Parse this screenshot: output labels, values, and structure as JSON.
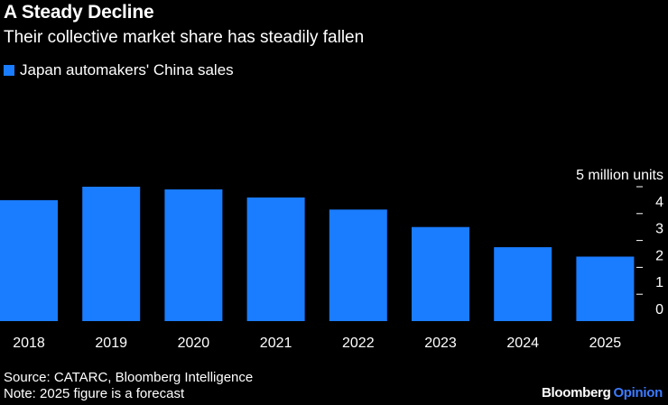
{
  "header": {
    "title": "A Steady Decline",
    "subtitle": "Their collective market share has steadily fallen"
  },
  "legend": {
    "label": "Japan automakers' China sales"
  },
  "footer": {
    "source": "Source: CATARC, Bloomberg Intelligence",
    "note": "Note: 2025 figure is a forecast",
    "brand_main": "Bloomberg",
    "brand_sub": "Opinion"
  },
  "colors": {
    "bar": "#1a7cff",
    "background": "#000000",
    "brand_accent": "#3d7bff"
  },
  "chart_data": {
    "type": "bar",
    "title": "A Steady Decline",
    "subtitle": "Their collective market share has steadily fallen",
    "categories": [
      "2018",
      "2019",
      "2020",
      "2021",
      "2022",
      "2023",
      "2024",
      "2025"
    ],
    "series": [
      {
        "name": "Japan automakers' China sales",
        "values": [
          4.5,
          5.0,
          4.9,
          4.6,
          4.15,
          3.5,
          2.75,
          2.4
        ]
      }
    ],
    "ylabel": "5 million units",
    "yticks": [
      "0",
      "1",
      "2",
      "3",
      "4"
    ],
    "ylim": [
      0,
      5
    ],
    "grid": false,
    "legend_position": "top-left"
  }
}
